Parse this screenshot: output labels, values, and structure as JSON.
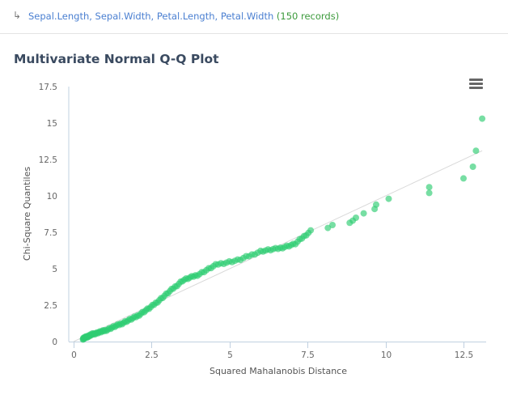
{
  "header": {
    "arrow_glyph": "↳",
    "variables": "Sepal.Length, Sepal.Width, Petal.Length, Petal.Width",
    "record_count": "(150 records)"
  },
  "title": "Multivariate Normal Q-Q Plot",
  "menu": {
    "icon": "hamburger-menu-icon"
  },
  "colors": {
    "point": "#2ecc71",
    "reference_line": "#d9d9d9",
    "axis": "#c0d0e0",
    "tick_label": "#666666",
    "title": "#3a4a60"
  },
  "chart_data": {
    "type": "scatter",
    "title": "Multivariate Normal Q-Q Plot",
    "xlabel": "Squared Mahalanobis Distance",
    "ylabel": "Chi-Square Quantiles",
    "xlim": [
      -0.15,
      13.25
    ],
    "ylim": [
      0,
      17.5
    ],
    "x_ticks": [
      "0",
      "2.5",
      "5",
      "7.5",
      "10",
      "12.5"
    ],
    "y_ticks": [
      "0",
      "2.5",
      "5",
      "7.5",
      "10",
      "12.5",
      "15",
      "17.5"
    ],
    "grid": false,
    "legend": "none",
    "reference_line": {
      "x": [
        0,
        13.1
      ],
      "y": [
        0,
        13.1
      ]
    },
    "n_points": 150,
    "outliers": [
      {
        "x": 13.1,
        "y": 15.3
      },
      {
        "x": 12.9,
        "y": 13.1
      },
      {
        "x": 12.8,
        "y": 12.0
      },
      {
        "x": 12.5,
        "y": 11.2
      },
      {
        "x": 11.4,
        "y": 10.6
      },
      {
        "x": 11.4,
        "y": 10.2
      },
      {
        "x": 10.1,
        "y": 9.8
      },
      {
        "x": 9.7,
        "y": 9.4
      },
      {
        "x": 9.65,
        "y": 9.1
      },
      {
        "x": 9.3,
        "y": 8.8
      },
      {
        "x": 9.05,
        "y": 8.5
      },
      {
        "x": 8.95,
        "y": 8.3
      },
      {
        "x": 8.85,
        "y": 8.15
      },
      {
        "x": 8.3,
        "y": 8.0
      },
      {
        "x": 8.15,
        "y": 7.8
      }
    ],
    "curve_knots": [
      {
        "x": 0.3,
        "y": 0.2
      },
      {
        "x": 0.6,
        "y": 0.5
      },
      {
        "x": 1.0,
        "y": 0.75
      },
      {
        "x": 1.5,
        "y": 1.2
      },
      {
        "x": 2.0,
        "y": 1.7
      },
      {
        "x": 2.5,
        "y": 2.4
      },
      {
        "x": 3.0,
        "y": 3.3
      },
      {
        "x": 3.5,
        "y": 4.2
      },
      {
        "x": 4.0,
        "y": 4.6
      },
      {
        "x": 4.6,
        "y": 5.3
      },
      {
        "x": 5.3,
        "y": 5.6
      },
      {
        "x": 6.0,
        "y": 6.2
      },
      {
        "x": 6.6,
        "y": 6.4
      },
      {
        "x": 7.1,
        "y": 6.7
      },
      {
        "x": 7.6,
        "y": 7.6
      }
    ]
  }
}
